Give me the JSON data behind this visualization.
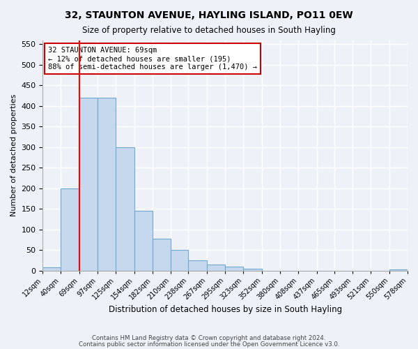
{
  "title": "32, STAUNTON AVENUE, HAYLING ISLAND, PO11 0EW",
  "subtitle": "Size of property relative to detached houses in South Hayling",
  "xlabel": "Distribution of detached houses by size in South Hayling",
  "ylabel": "Number of detached properties",
  "bar_values": [
    8,
    200,
    420,
    420,
    300,
    145,
    78,
    50,
    25,
    15,
    10,
    5,
    0,
    0,
    0,
    0,
    0,
    0,
    0,
    2
  ],
  "bin_labels": [
    "12sqm",
    "40sqm",
    "69sqm",
    "97sqm",
    "125sqm",
    "154sqm",
    "182sqm",
    "210sqm",
    "238sqm",
    "267sqm",
    "295sqm",
    "323sqm",
    "352sqm",
    "380sqm",
    "408sqm",
    "437sqm",
    "465sqm",
    "493sqm",
    "521sqm",
    "550sqm",
    "578sqm"
  ],
  "bin_edges": [
    12,
    40,
    69,
    97,
    125,
    154,
    182,
    210,
    238,
    267,
    295,
    323,
    352,
    380,
    408,
    437,
    465,
    493,
    521,
    550,
    578
  ],
  "bar_color": "#c5d8ed",
  "bar_edge_color": "#6fa8d0",
  "red_line_x": 69,
  "annotation_text": "32 STAUNTON AVENUE: 69sqm\n← 12% of detached houses are smaller (195)\n88% of semi-detached houses are larger (1,470) →",
  "annotation_box_color": "#ffffff",
  "annotation_box_edge": "#cc0000",
  "ylim": [
    0,
    560
  ],
  "yticks": [
    0,
    50,
    100,
    150,
    200,
    250,
    300,
    350,
    400,
    450,
    500,
    550
  ],
  "bg_color": "#eef2f8",
  "grid_color": "#ffffff",
  "footer_line1": "Contains HM Land Registry data © Crown copyright and database right 2024.",
  "footer_line2": "Contains public sector information licensed under the Open Government Licence v3.0."
}
